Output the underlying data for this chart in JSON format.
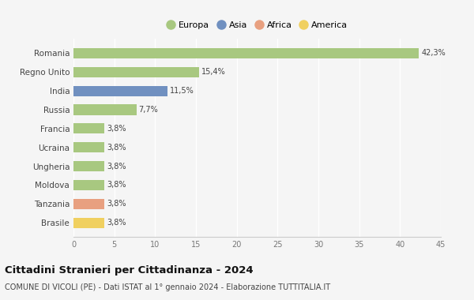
{
  "categories": [
    "Brasile",
    "Tanzania",
    "Moldova",
    "Ungheria",
    "Ucraina",
    "Francia",
    "Russia",
    "India",
    "Regno Unito",
    "Romania"
  ],
  "values": [
    3.8,
    3.8,
    3.8,
    3.8,
    3.8,
    3.8,
    7.7,
    11.5,
    15.4,
    42.3
  ],
  "labels": [
    "3,8%",
    "3,8%",
    "3,8%",
    "3,8%",
    "3,8%",
    "3,8%",
    "7,7%",
    "11,5%",
    "15,4%",
    "42,3%"
  ],
  "colors": [
    "#f0d060",
    "#e8a080",
    "#a8c880",
    "#a8c880",
    "#a8c880",
    "#a8c880",
    "#a8c880",
    "#7090c0",
    "#a8c880",
    "#a8c880"
  ],
  "legend": [
    {
      "label": "Europa",
      "color": "#a8c880"
    },
    {
      "label": "Asia",
      "color": "#7090c0"
    },
    {
      "label": "Africa",
      "color": "#e8a080"
    },
    {
      "label": "America",
      "color": "#f0d060"
    }
  ],
  "xlim": [
    0,
    45
  ],
  "xticks": [
    0,
    5,
    10,
    15,
    20,
    25,
    30,
    35,
    40,
    45
  ],
  "title": "Cittadini Stranieri per Cittadinanza - 2024",
  "subtitle": "COMUNE DI VICOLI (PE) - Dati ISTAT al 1° gennaio 2024 - Elaborazione TUTTITALIA.IT",
  "bg_color": "#f5f5f5",
  "grid_color": "#ffffff",
  "bar_height": 0.55
}
